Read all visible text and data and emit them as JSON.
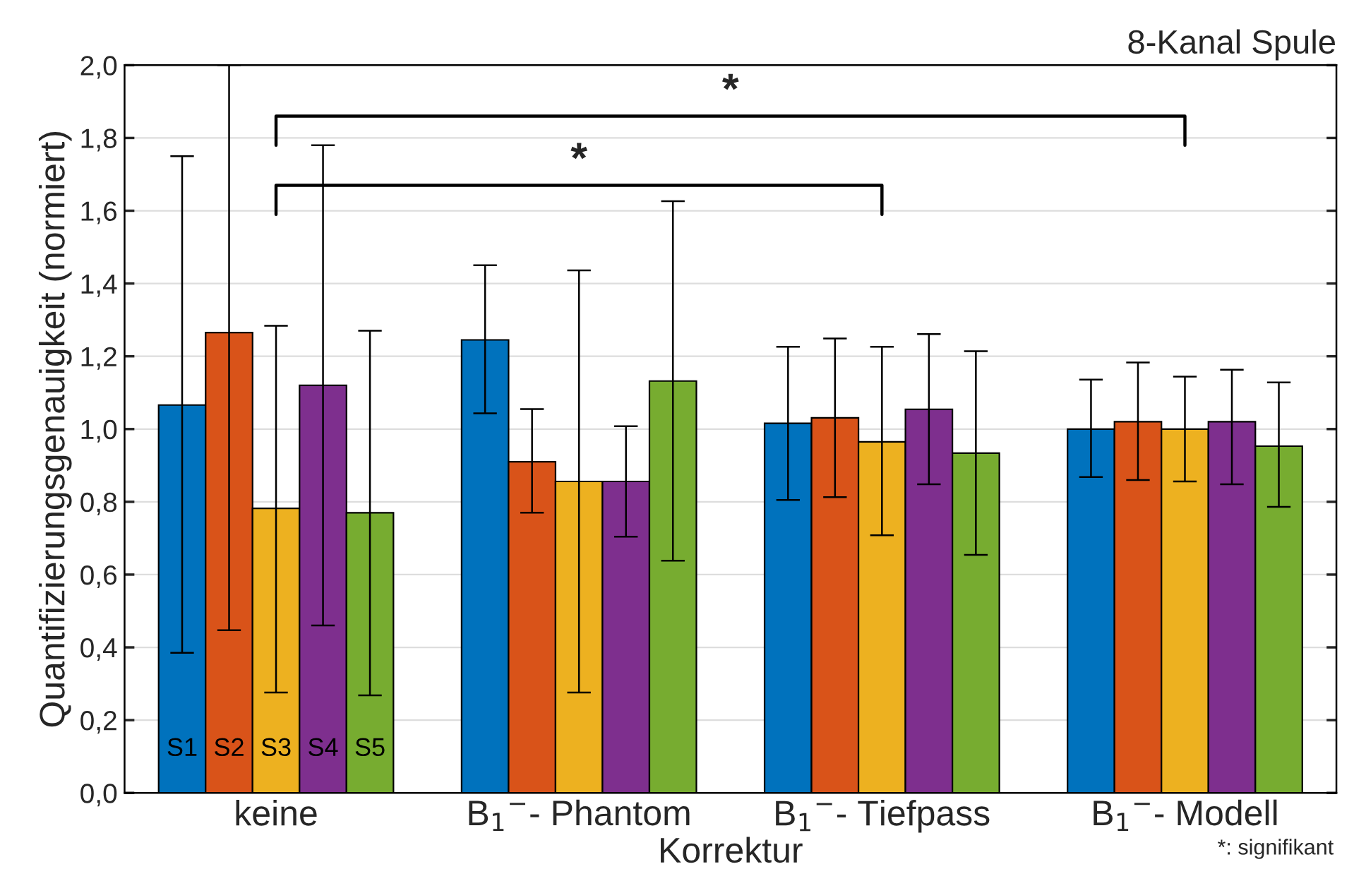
{
  "chart_data": {
    "type": "bar",
    "title": "8-Kanal Spule",
    "xlabel": "Korrektur",
    "ylabel": "Quantifizierungsgenauigkeit (normiert)",
    "categories": [
      "keine",
      "B$_{1}$$^{−}$- Phantom",
      "B$_{1}$$^{−}$- Tiefpass",
      "B$_{1}$$^{−}$- Modell"
    ],
    "series": [
      {
        "name": "S1",
        "color": "#0072bd",
        "values": [
          1.066,
          1.245,
          1.016,
          1.0
        ],
        "errors": [
          [
            0.385,
            1.75
          ],
          [
            1.043,
            1.45
          ],
          [
            0.805,
            1.226
          ],
          [
            0.868,
            1.136
          ]
        ]
      },
      {
        "name": "S2",
        "color": "#d95319",
        "values": [
          1.265,
          0.91,
          1.031,
          1.02
        ],
        "errors": [
          [
            0.447,
            2.0
          ],
          [
            0.77,
            1.055
          ],
          [
            0.813,
            1.249
          ],
          [
            0.86,
            1.183
          ]
        ]
      },
      {
        "name": "S3",
        "color": "#edb120",
        "values": [
          0.782,
          0.856,
          0.965,
          1.0
        ],
        "errors": [
          [
            0.276,
            1.284
          ],
          [
            0.276,
            1.436
          ],
          [
            0.708,
            1.226
          ],
          [
            0.856,
            1.144
          ]
        ]
      },
      {
        "name": "S4",
        "color": "#7e2f8e",
        "values": [
          1.12,
          0.856,
          1.054,
          1.02
        ],
        "errors": [
          [
            0.46,
            1.78
          ],
          [
            0.704,
            1.008
          ],
          [
            0.848,
            1.261
          ],
          [
            0.848,
            1.163
          ]
        ]
      },
      {
        "name": "S5",
        "color": "#77ac30",
        "values": [
          0.77,
          1.132,
          0.934,
          0.953
        ],
        "errors": [
          [
            0.268,
            1.27
          ],
          [
            0.638,
            1.626
          ],
          [
            0.654,
            1.214
          ],
          [
            0.786,
            1.128
          ]
        ]
      }
    ],
    "ylim": [
      0,
      2
    ],
    "yticks": [
      {
        "value": 0,
        "label": "0,0"
      },
      {
        "value": 0.2,
        "label": "0,2"
      },
      {
        "value": 0.4,
        "label": "0,4"
      },
      {
        "value": 0.6,
        "label": "0,6"
      },
      {
        "value": 0.8,
        "label": "0,8"
      },
      {
        "value": 1.0,
        "label": "1,0"
      },
      {
        "value": 1.2,
        "label": "1,2"
      },
      {
        "value": 1.4,
        "label": "1,4"
      },
      {
        "value": 1.6,
        "label": "1,6"
      },
      {
        "value": 1.8,
        "label": "1,8"
      },
      {
        "value": 2.0,
        "label": "2,0"
      }
    ],
    "grid": "y",
    "legend": false,
    "annotations": [
      "*",
      "*",
      "*: signifikant"
    ]
  }
}
